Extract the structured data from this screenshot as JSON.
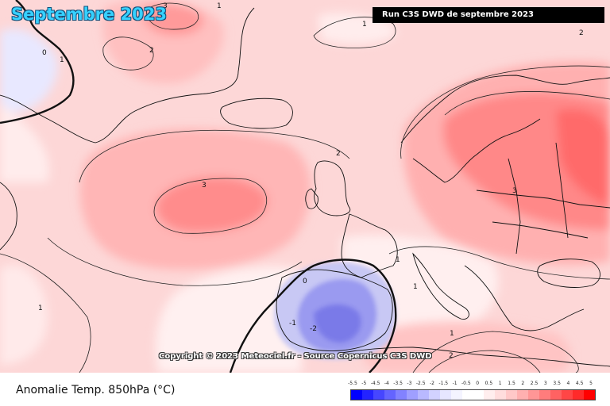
{
  "map": {
    "title": "Septembre 2023",
    "run_label": "Run C3S DWD de septembre 2023",
    "copyright": "Copyright © 2023 Meteociel.fr - Source Copernicus C3S DWD",
    "contour_labels": [
      "3",
      "1",
      "2",
      "0",
      "1",
      "2",
      "3",
      "3",
      "2",
      "1",
      "1",
      "0",
      "-1",
      "-2",
      "1",
      "1",
      "2",
      "1"
    ]
  },
  "legend": {
    "variable_label": "Anomalie Temp. 850hPa (°C)",
    "ticks": [
      "-5.5",
      "-5",
      "-4.5",
      "-4",
      "-3.5",
      "-3",
      "-2.5",
      "-2",
      "-1.5",
      "-1",
      "-0.5",
      "0",
      "0.5",
      "1",
      "1.5",
      "2",
      "2.5",
      "3",
      "3.5",
      "4",
      "4.5",
      "5"
    ],
    "colors": [
      "#0000ff",
      "#2323ff",
      "#4646ff",
      "#6464ff",
      "#8282ff",
      "#9f9fff",
      "#b9b9ff",
      "#d2d2ff",
      "#e6e6ff",
      "#f4f4ff",
      "#ffffff",
      "#ffffff",
      "#ffeeee",
      "#ffdddd",
      "#ffc8c8",
      "#ffb0b0",
      "#ff9696",
      "#ff7c7c",
      "#ff6262",
      "#ff4646",
      "#ff2a2a",
      "#ff0000"
    ]
  }
}
